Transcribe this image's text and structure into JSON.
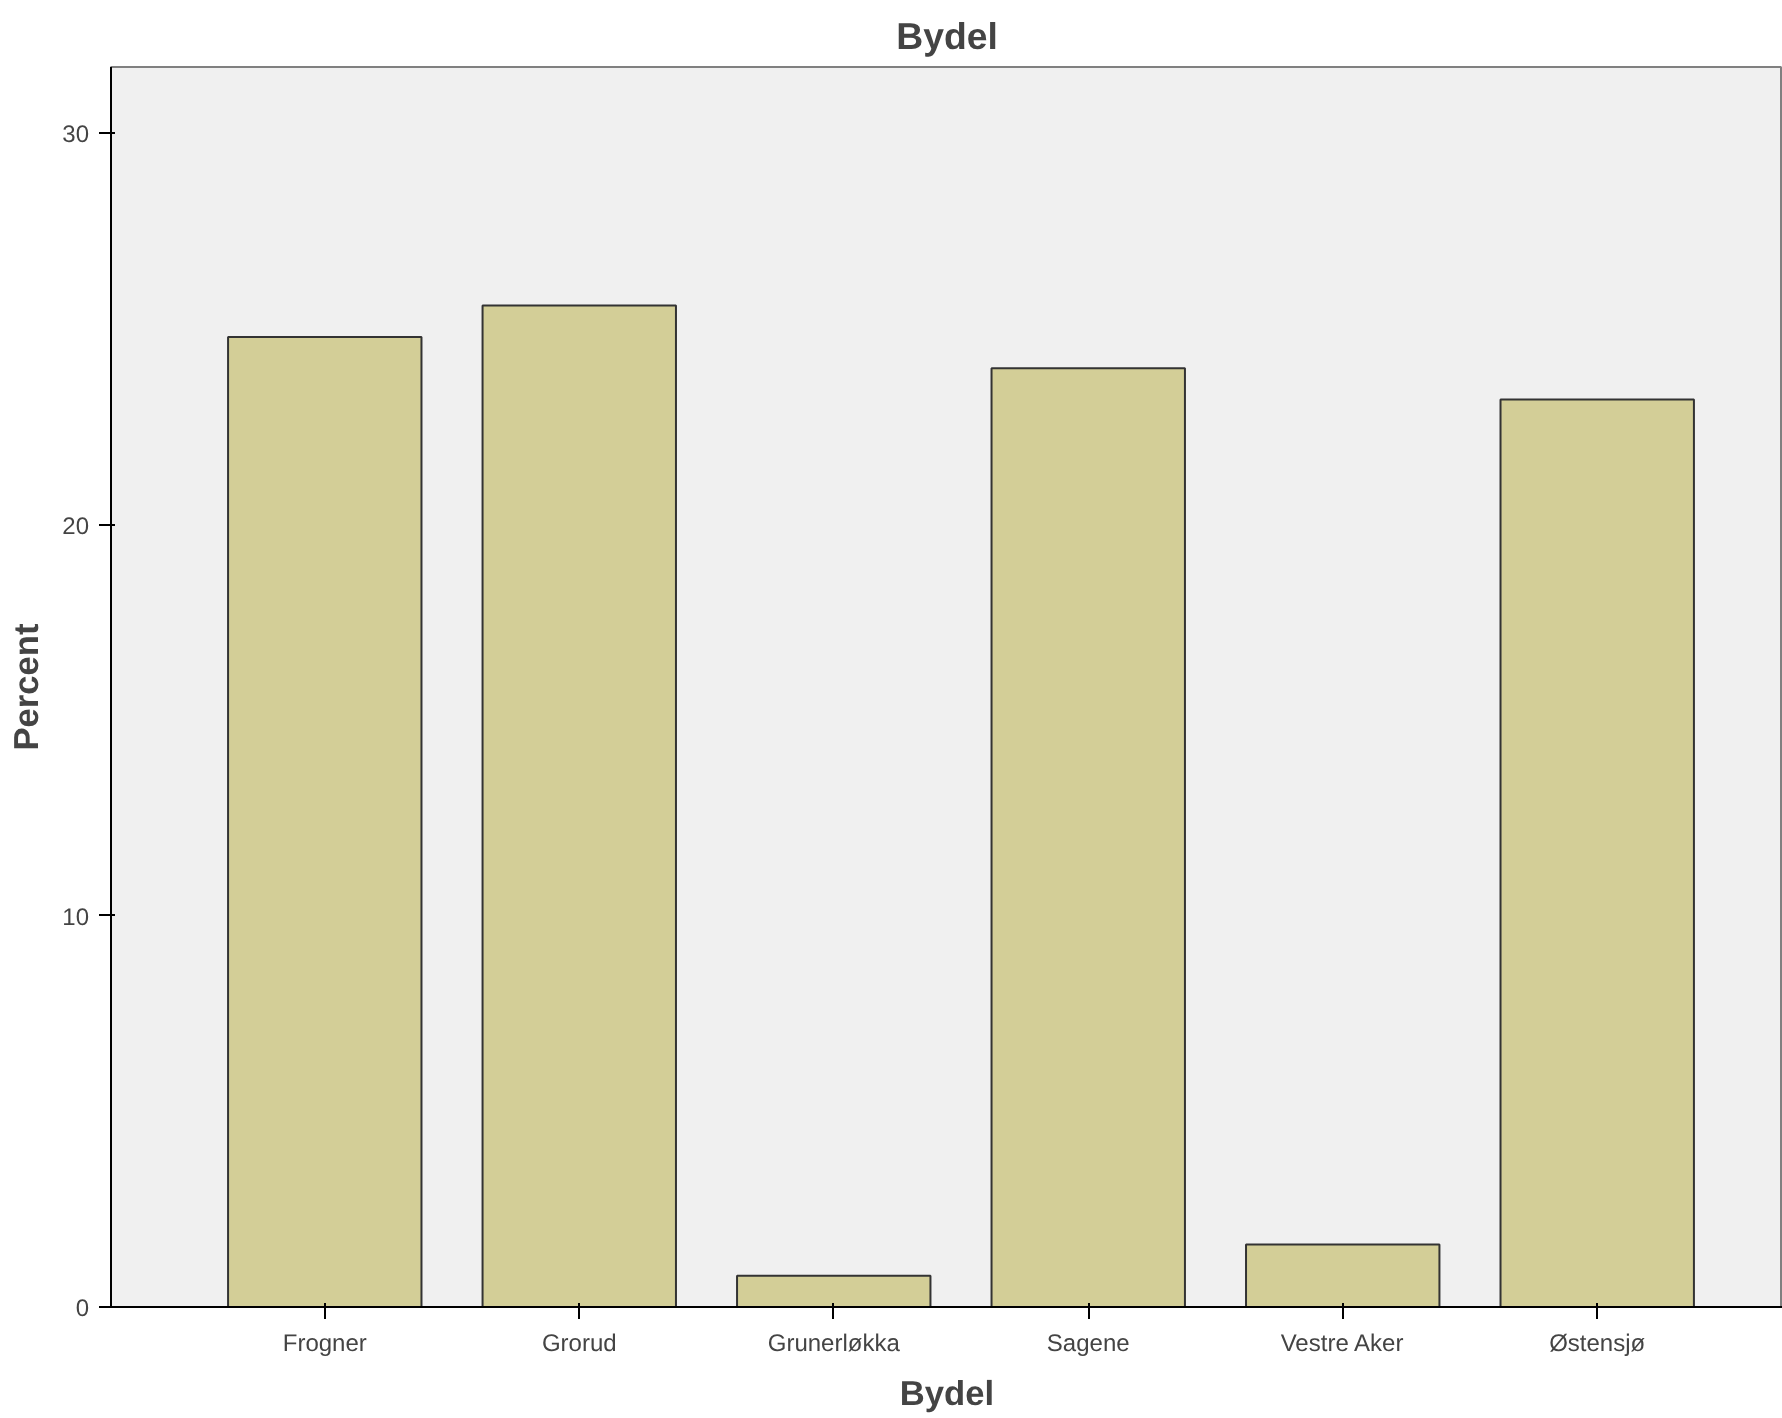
{
  "chart_data": {
    "type": "bar",
    "title": "Bydel",
    "xlabel": "Bydel",
    "ylabel": "Percent",
    "categories": [
      "Frogner",
      "Grorud",
      "Grunerløkka",
      "Sagene",
      "Vestre Aker",
      "Østensjø"
    ],
    "values": [
      24.8,
      25.6,
      0.8,
      24.0,
      1.6,
      23.2
    ],
    "color": "#d3ce97",
    "ylim": [
      0,
      31.7
    ],
    "yticks": [
      0,
      10,
      20,
      30
    ],
    "grid": false
  }
}
